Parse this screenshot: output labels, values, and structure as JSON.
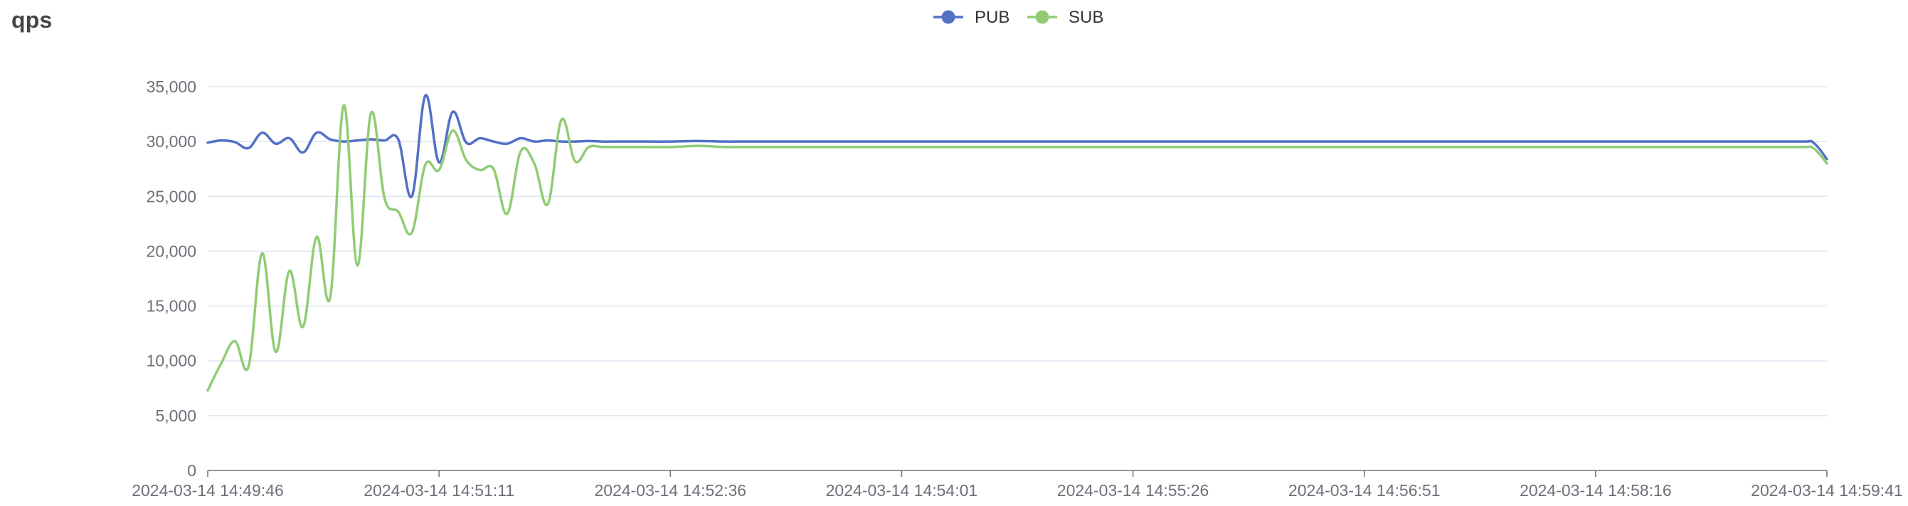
{
  "chart_data": {
    "type": "line",
    "title": "qps",
    "xlabel": "",
    "ylabel": "",
    "ylim": [
      0,
      35000
    ],
    "yticks": [
      0,
      5000,
      10000,
      15000,
      20000,
      25000,
      30000,
      35000
    ],
    "ytick_labels": [
      "0",
      "5,000",
      "10,000",
      "15,000",
      "20,000",
      "25,000",
      "30,000",
      "35,000"
    ],
    "grid": true,
    "legend_position": "top-center",
    "x_start": "2024-03-14 14:49:46",
    "x_end": "2024-03-14 14:59:41",
    "xticks": [
      "2024-03-14 14:49:46",
      "2024-03-14 14:51:11",
      "2024-03-14 14:52:36",
      "2024-03-14 14:54:01",
      "2024-03-14 14:55:26",
      "2024-03-14 14:56:51",
      "2024-03-14 14:58:16",
      "2024-03-14 14:59:41"
    ],
    "x": [
      "2024-03-14 14:49:46",
      "2024-03-14 14:49:51",
      "2024-03-14 14:49:56",
      "2024-03-14 14:50:01",
      "2024-03-14 14:50:06",
      "2024-03-14 14:50:11",
      "2024-03-14 14:50:16",
      "2024-03-14 14:50:21",
      "2024-03-14 14:50:26",
      "2024-03-14 14:50:31",
      "2024-03-14 14:50:36",
      "2024-03-14 14:50:41",
      "2024-03-14 14:50:46",
      "2024-03-14 14:50:51",
      "2024-03-14 14:50:56",
      "2024-03-14 14:51:01",
      "2024-03-14 14:51:06",
      "2024-03-14 14:51:11",
      "2024-03-14 14:51:16",
      "2024-03-14 14:51:21",
      "2024-03-14 14:51:26",
      "2024-03-14 14:51:31",
      "2024-03-14 14:51:36",
      "2024-03-14 14:51:41",
      "2024-03-14 14:51:46",
      "2024-03-14 14:51:51",
      "2024-03-14 14:51:56",
      "2024-03-14 14:52:01",
      "2024-03-14 14:52:06",
      "2024-03-14 14:52:11",
      "2024-03-14 14:52:16",
      "2024-03-14 14:52:21",
      "2024-03-14 14:52:26",
      "2024-03-14 14:52:36",
      "2024-03-14 14:52:46",
      "2024-03-14 14:52:56",
      "2024-03-14 14:53:01",
      "2024-03-14 14:53:06",
      "2024-03-14 14:53:21",
      "2024-03-14 14:54:01",
      "2024-03-14 14:55:26",
      "2024-03-14 14:56:51",
      "2024-03-14 14:58:16",
      "2024-03-14 14:59:01",
      "2024-03-14 14:59:31",
      "2024-03-14 14:59:36",
      "2024-03-14 14:59:41"
    ],
    "series": [
      {
        "name": "PUB",
        "color": "#5470c6",
        "values": [
          29900,
          30100,
          29950,
          29400,
          30800,
          29800,
          30300,
          29000,
          30800,
          30200,
          30000,
          30100,
          30200,
          30100,
          30200,
          25000,
          34200,
          28100,
          32700,
          29900,
          30300,
          30000,
          29800,
          30300,
          30000,
          30100,
          30000,
          30000,
          30050,
          30000,
          30000,
          30000,
          30000,
          30000,
          30050,
          30000,
          30000,
          30000,
          30000,
          30000,
          30000,
          30000,
          30000,
          30000,
          30000,
          29900,
          28400
        ]
      },
      {
        "name": "SUB",
        "color": "#91cc75",
        "values": [
          7300,
          9800,
          11800,
          9500,
          19800,
          10800,
          18200,
          13100,
          21300,
          15800,
          33300,
          18700,
          32600,
          24800,
          23600,
          21700,
          27900,
          27400,
          31000,
          28300,
          27400,
          27500,
          23400,
          29100,
          28000,
          24300,
          32000,
          28200,
          29500,
          29500,
          29500,
          29500,
          29500,
          29500,
          29600,
          29500,
          29500,
          29500,
          29500,
          29500,
          29500,
          29500,
          29500,
          29500,
          29500,
          29400,
          28000
        ]
      }
    ]
  }
}
